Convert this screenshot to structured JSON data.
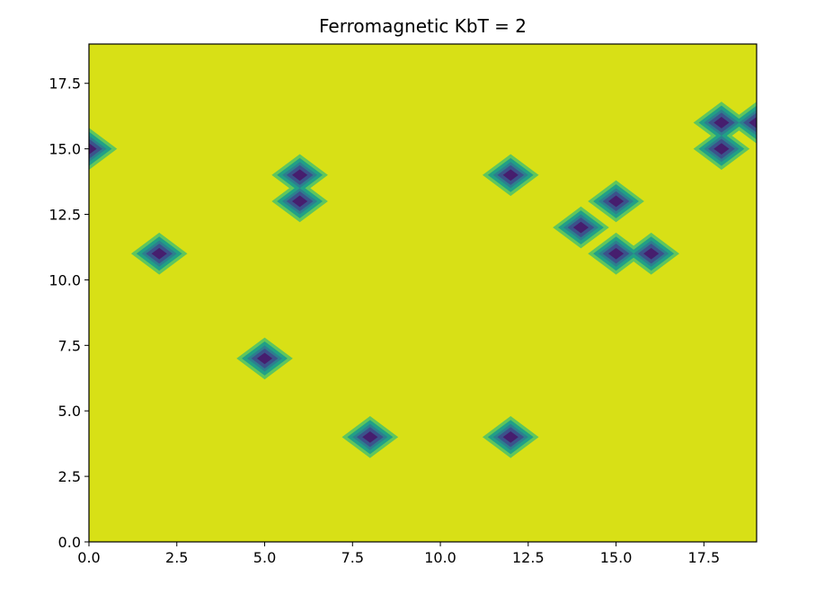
{
  "chart_data": {
    "type": "heatmap",
    "title": "Ferromagnetic KbT = 2",
    "xlabel": "",
    "ylabel": "",
    "xlim": [
      0,
      19
    ],
    "ylim": [
      0,
      19
    ],
    "x_ticks": [
      0.0,
      2.5,
      5.0,
      7.5,
      10.0,
      12.5,
      15.0,
      17.5
    ],
    "x_tick_labels": [
      "0.0",
      "2.5",
      "5.0",
      "7.5",
      "10.0",
      "12.5",
      "15.0",
      "17.5"
    ],
    "y_ticks": [
      0.0,
      2.5,
      5.0,
      7.5,
      10.0,
      12.5,
      15.0,
      17.5
    ],
    "y_tick_labels": [
      "0.0",
      "2.5",
      "5.0",
      "7.5",
      "10.0",
      "12.5",
      "15.0",
      "17.5"
    ],
    "grid": false,
    "legend": "none",
    "colormap": "viridis",
    "background_value": 1,
    "minority_value": -1,
    "minority_spins": [
      [
        0,
        15
      ],
      [
        2,
        11
      ],
      [
        5,
        7
      ],
      [
        6,
        13
      ],
      [
        6,
        14
      ],
      [
        8,
        4
      ],
      [
        12,
        4
      ],
      [
        12,
        14
      ],
      [
        14,
        12
      ],
      [
        15,
        13
      ],
      [
        15,
        11
      ],
      [
        16,
        11
      ],
      [
        18,
        15
      ],
      [
        18,
        16
      ],
      [
        19,
        16
      ]
    ],
    "colors": {
      "background": "#d8e016",
      "ring_1": "#5fc65d",
      "ring_2": "#21a086",
      "ring_3": "#2c7f8e",
      "ring_4": "#3b528b",
      "core": "#461e6e"
    }
  }
}
